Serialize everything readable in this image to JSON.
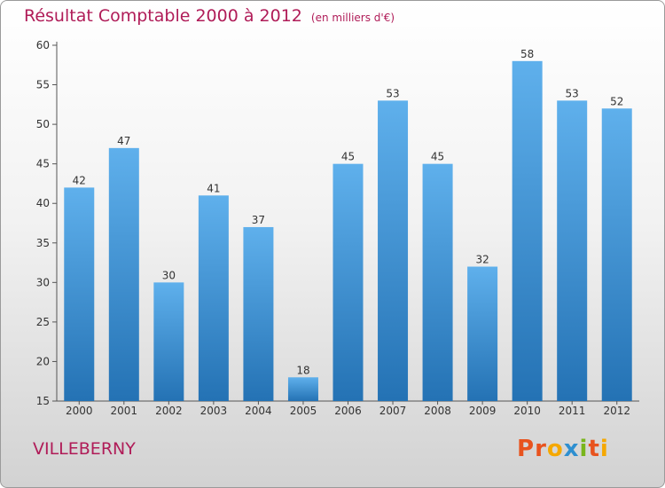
{
  "header": {
    "title": "Résultat Comptable 2000 à 2012",
    "unit": "(en milliers d'€)"
  },
  "footer": {
    "commune": "VILLEBERNY",
    "logo": "Proxiti"
  },
  "colors": {
    "title": "#b01c58",
    "bar_top": "#5fb0ec",
    "bar_bottom": "#2472b4",
    "logo": [
      "#e8531e",
      "#e8531e",
      "#f5a800",
      "#2e8fd0",
      "#79b51c",
      "#e8531e",
      "#f5a800"
    ]
  },
  "chart_data": {
    "type": "bar",
    "title": "Résultat Comptable 2000 à 2012",
    "subtitle": "(en milliers d'€)",
    "xlabel": "",
    "ylabel": "",
    "categories": [
      "2000",
      "2001",
      "2002",
      "2003",
      "2004",
      "2005",
      "2006",
      "2007",
      "2008",
      "2009",
      "2010",
      "2011",
      "2012"
    ],
    "values": [
      42,
      47,
      30,
      41,
      37,
      18,
      45,
      53,
      45,
      32,
      58,
      53,
      52
    ],
    "ylim": [
      15,
      60
    ],
    "yticks": [
      15,
      20,
      25,
      30,
      35,
      40,
      45,
      50,
      55,
      60
    ],
    "grid": false,
    "legend": "none"
  }
}
